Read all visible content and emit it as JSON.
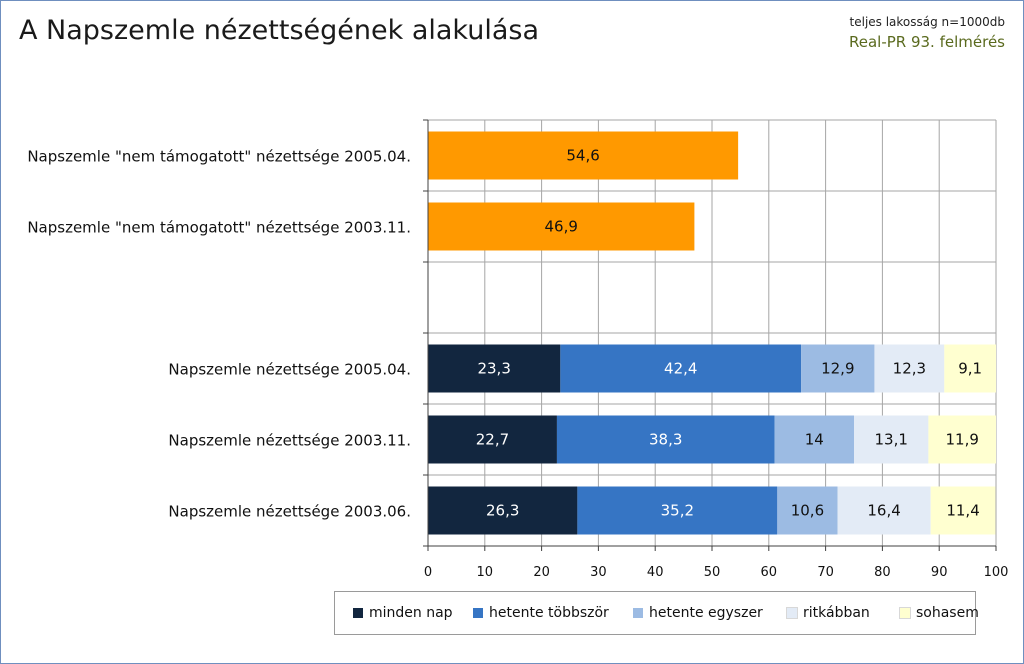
{
  "header": {
    "title": "A Napszemle nézettségének alakulása",
    "sample_note": "teljes lakosság n=1000db",
    "survey_note": "Real-PR 93. felmérés"
  },
  "chart_data": {
    "type": "bar",
    "orientation": "horizontal",
    "stacked": true,
    "xlim": [
      0,
      100
    ],
    "xticks": [
      0,
      10,
      20,
      30,
      40,
      50,
      60,
      70,
      80,
      90,
      100
    ],
    "grid": true,
    "legend_position": "bottom",
    "categories": [
      "Napszemle \"nem támogatott\" nézettsége 2005.04.",
      "Napszemle \"nem támogatott\" nézettsége 2003.11.",
      "",
      "Napszemle nézettsége 2005.04.",
      "Napszemle nézettsége 2003.11.",
      "Napszemle nézettsége 2003.06."
    ],
    "unaided": {
      "color": "#ff9900",
      "values": [
        54.6,
        46.9,
        null,
        null,
        null,
        null
      ],
      "labels": [
        "54,6",
        "46,9",
        "",
        "",
        "",
        ""
      ]
    },
    "series": [
      {
        "name": "minden nap",
        "color": "#12263f",
        "text_color": "#ffffff",
        "values": [
          null,
          null,
          null,
          23.3,
          22.7,
          26.3
        ],
        "labels": [
          "",
          "",
          "",
          "23,3",
          "22,7",
          "26,3"
        ]
      },
      {
        "name": "hetente többször",
        "color": "#3675c4",
        "text_color": "#ffffff",
        "values": [
          null,
          null,
          null,
          42.4,
          38.3,
          35.2
        ],
        "labels": [
          "",
          "",
          "",
          "42,4",
          "38,3",
          "35,2"
        ]
      },
      {
        "name": "hetente egyszer",
        "color": "#9cbbe3",
        "text_color": "#111111",
        "values": [
          null,
          null,
          null,
          12.9,
          14,
          10.6
        ],
        "labels": [
          "",
          "",
          "",
          "12,9",
          "14",
          "10,6"
        ]
      },
      {
        "name": "ritkábban",
        "color": "#e3ebf6",
        "text_color": "#111111",
        "values": [
          null,
          null,
          null,
          12.3,
          13.1,
          16.4
        ],
        "labels": [
          "",
          "",
          "",
          "12,3",
          "13,1",
          "16,4"
        ]
      },
      {
        "name": "sohasem",
        "color": "#ffffd0",
        "text_color": "#111111",
        "values": [
          null,
          null,
          null,
          9.1,
          11.9,
          11.4
        ],
        "labels": [
          "",
          "",
          "",
          "9,1",
          "11,9",
          "11,4"
        ]
      }
    ]
  }
}
